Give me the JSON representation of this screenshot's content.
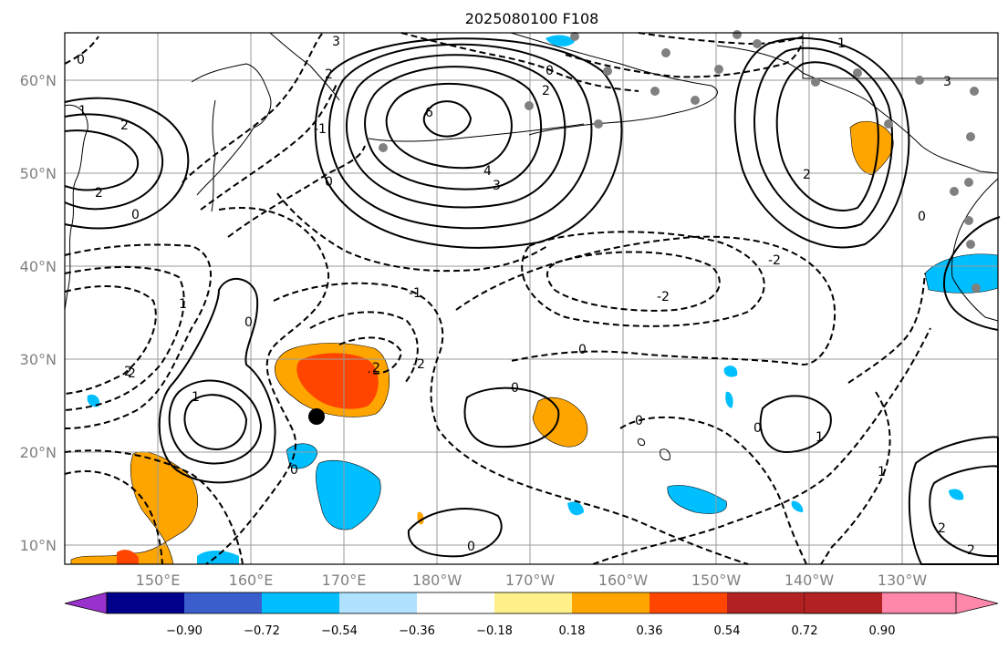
{
  "title": "2025080100 F108",
  "lat_labels": [
    "60°N",
    "50°N",
    "40°N",
    "30°N",
    "20°N",
    "10°N"
  ],
  "lon_labels": [
    "150°E",
    "160°E",
    "170°E",
    "180°W",
    "170°W",
    "160°W",
    "150°W",
    "140°W",
    "130°W"
  ],
  "colorbar": {
    "ticks": [
      "−0.90",
      "−0.72",
      "−0.54",
      "−0.36",
      "−0.18",
      "0.18",
      "0.36",
      "0.54",
      "0.72",
      "0.90"
    ],
    "colors": [
      "#9932cc",
      "#00008b",
      "#3a5fcd",
      "#00bfff",
      "#b0e2ff",
      "#ffffff",
      "#fff08a",
      "#ffa500",
      "#ff4500",
      "#b22222",
      "#ff88aa"
    ]
  },
  "contour_labels": [
    "3",
    "2",
    "2",
    "6",
    "4",
    "3",
    "0",
    "0",
    "1",
    "1",
    "2",
    "2",
    "2",
    "0",
    "0",
    "-1",
    "0",
    "-1",
    "1",
    "0",
    "-2",
    "-2",
    "2",
    "-2",
    "2",
    "1",
    "0",
    "0",
    "0",
    "0",
    "1",
    "0",
    "1",
    "2",
    "2",
    "0",
    "3",
    "2"
  ],
  "colors": {
    "positive_light": "#ffa500",
    "positive_strong": "#ff4500",
    "negative": "#00bfff",
    "marker": "#000000",
    "station": "#808080"
  }
}
